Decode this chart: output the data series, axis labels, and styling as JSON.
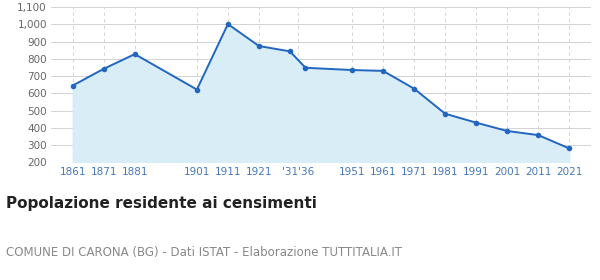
{
  "years": [
    1861,
    1871,
    1881,
    1901,
    1911,
    1921,
    1931,
    1936,
    1951,
    1961,
    1971,
    1981,
    1991,
    2001,
    2011,
    2021
  ],
  "values": [
    645,
    742,
    827,
    622,
    1001,
    874,
    843,
    748,
    735,
    730,
    627,
    482,
    430,
    382,
    358,
    281
  ],
  "tick_positions": [
    1861,
    1871,
    1881,
    1901,
    1911,
    1921,
    1933.5,
    1951,
    1961,
    1971,
    1981,
    1991,
    2001,
    2011,
    2021
  ],
  "tick_labels": [
    "1861",
    "1871",
    "1881",
    "1901",
    "1911",
    "1921",
    "'31'36",
    "1951",
    "1961",
    "1971",
    "1981",
    "1991",
    "2001",
    "2011",
    "2021"
  ],
  "ylim": [
    200,
    1100
  ],
  "yticks": [
    200,
    300,
    400,
    500,
    600,
    700,
    800,
    900,
    1000,
    1100
  ],
  "ytick_labels": [
    "200",
    "300",
    "400",
    "500",
    "600",
    "700",
    "800",
    "900",
    "1,000",
    "1,100"
  ],
  "line_color": "#2166c0",
  "fill_color": "#d9edf7",
  "marker_color": "#2166c0",
  "bg_color": "#ffffff",
  "grid_color": "#cccccc",
  "title": "Popolazione residente ai censimenti",
  "subtitle": "COMUNE DI CARONA (BG) - Dati ISTAT - Elaborazione TUTTITALIA.IT",
  "title_fontsize": 11,
  "subtitle_fontsize": 8.5,
  "xlim_left": 1854,
  "xlim_right": 2028
}
